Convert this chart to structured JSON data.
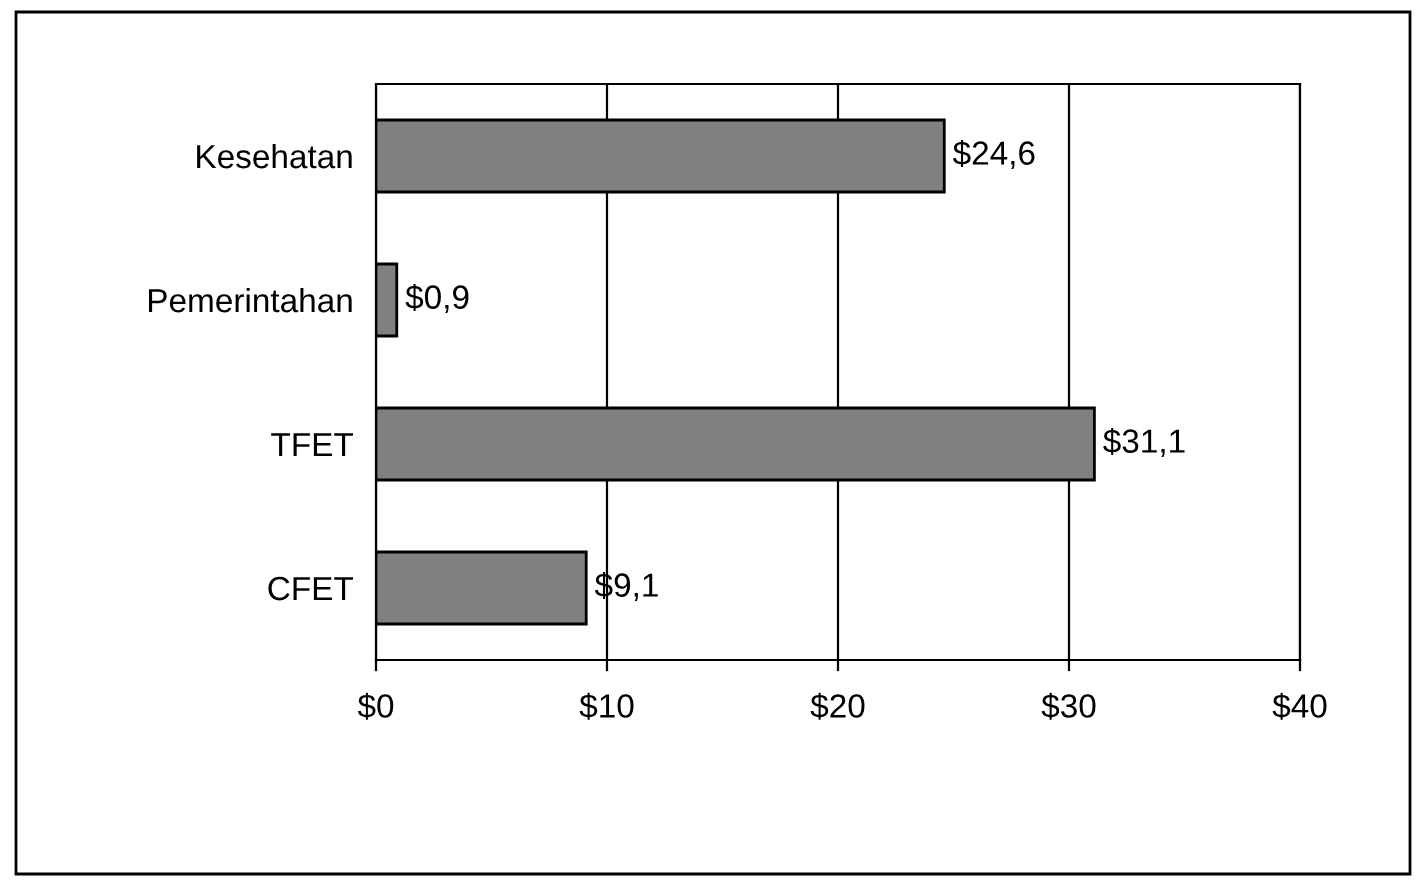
{
  "chart_data": {
    "type": "bar",
    "orientation": "horizontal",
    "categories": [
      "Kesehatan",
      "Pemerintahan",
      "TFET",
      "CFET"
    ],
    "values": [
      24.6,
      0.9,
      31.1,
      9.1
    ],
    "value_labels": [
      "$24,6",
      "$0,9",
      "$31,1",
      "$9,1"
    ],
    "color": "#808080",
    "xlim": [
      0,
      40
    ],
    "xticks": [
      {
        "value": 0,
        "label": "$0"
      },
      {
        "value": 10,
        "label": "$10"
      },
      {
        "value": 20,
        "label": "$20"
      },
      {
        "value": 30,
        "label": "$30"
      },
      {
        "value": 40,
        "label": "$40"
      }
    ],
    "grid": "x",
    "legend": false
  }
}
